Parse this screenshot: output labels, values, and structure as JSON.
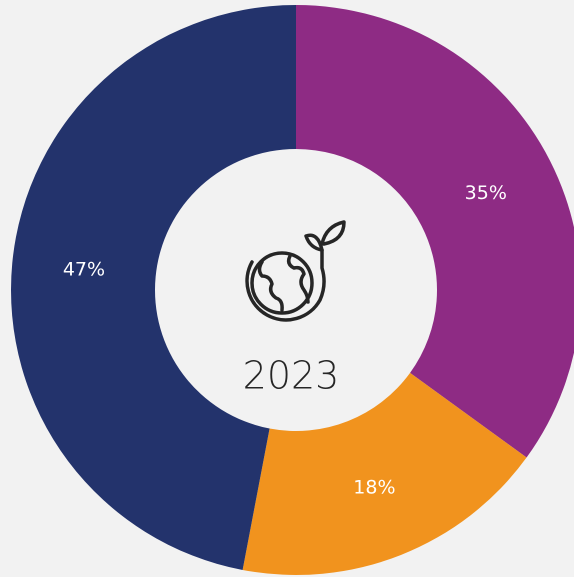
{
  "chart_data": {
    "type": "donut",
    "center_text": "2023",
    "values": [
      35,
      18,
      47
    ],
    "value_labels": [
      "35%",
      "18%",
      "47%"
    ],
    "colors": [
      "#8e2b84",
      "#f1931e",
      "#23336c"
    ]
  }
}
